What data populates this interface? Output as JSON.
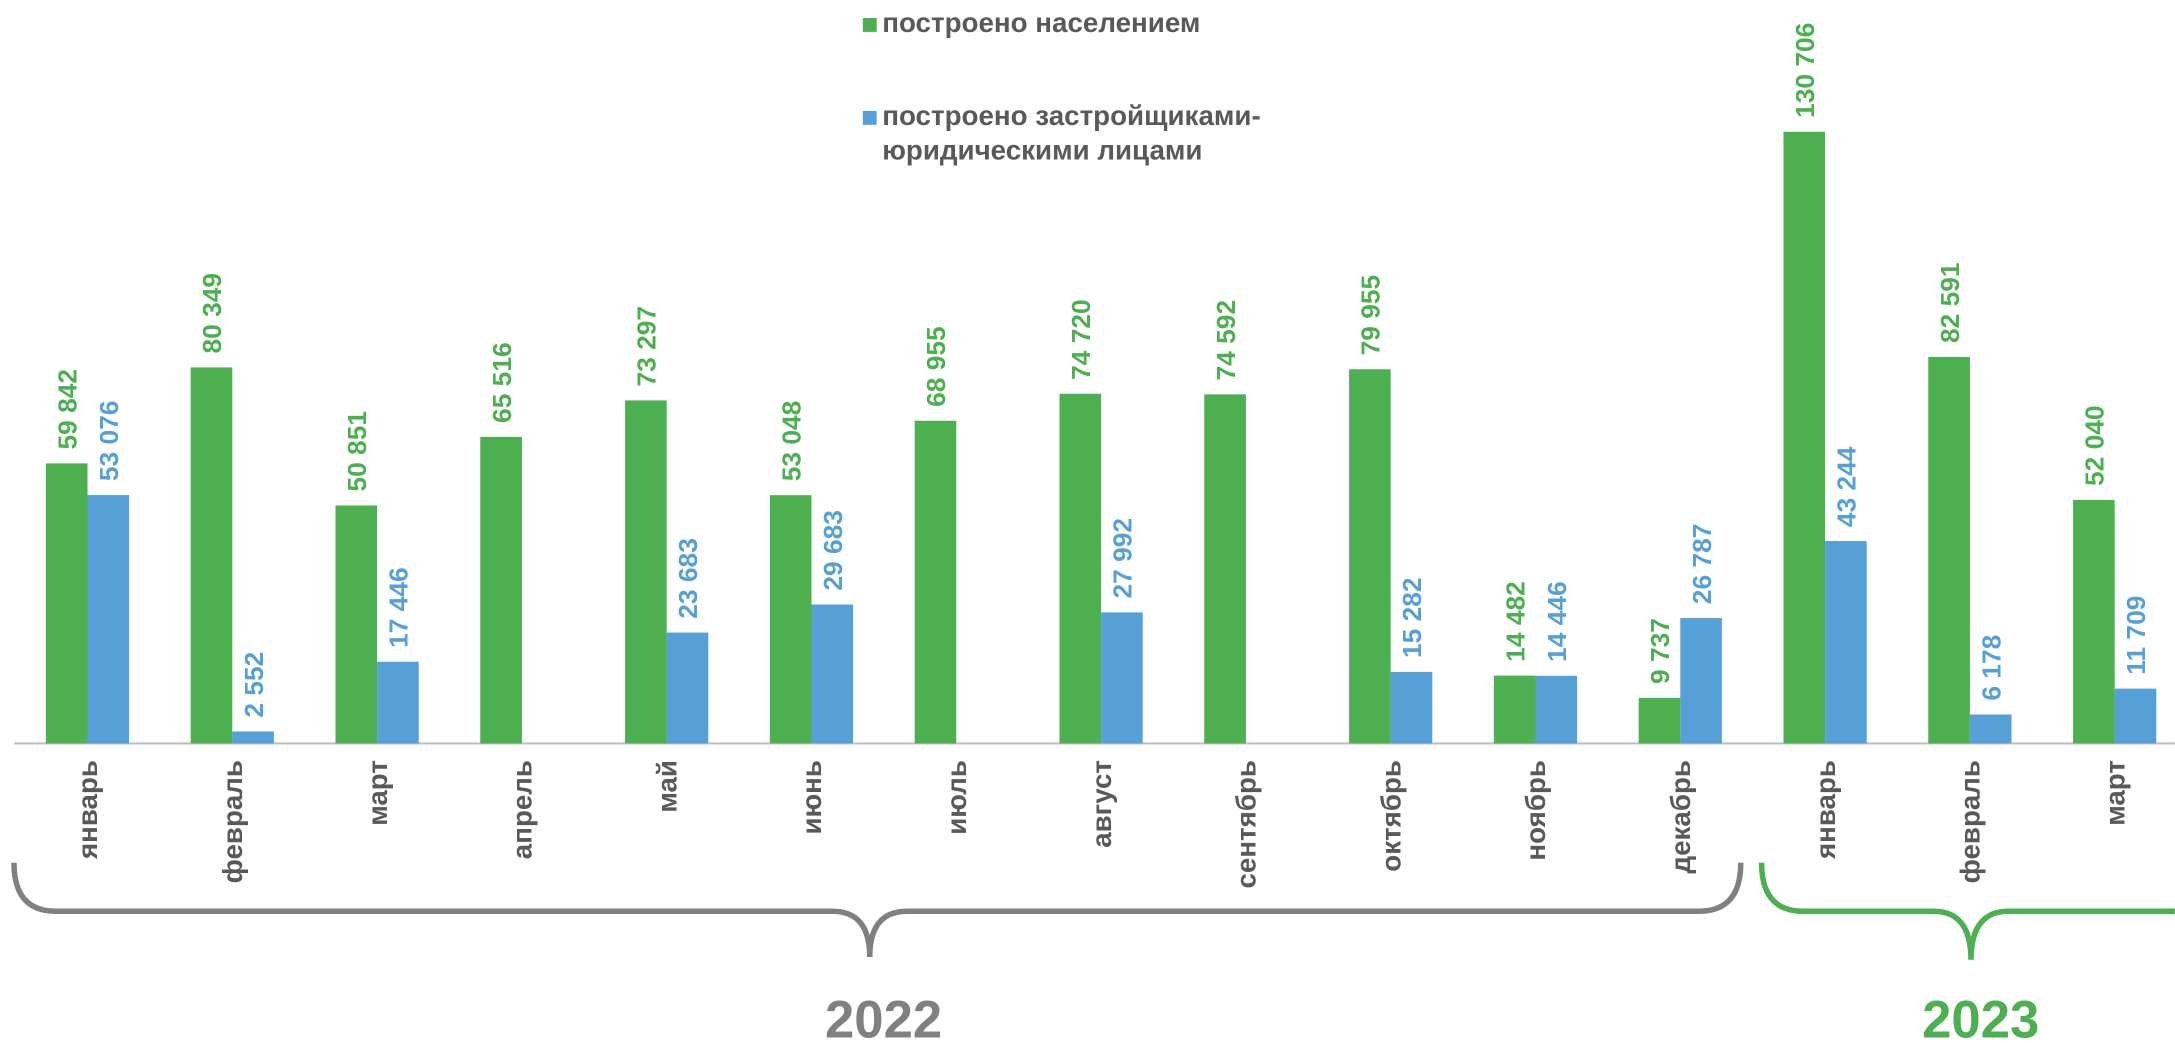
{
  "chart_data": {
    "type": "bar",
    "categories": [
      "январь",
      "февраль",
      "март",
      "апрель",
      "май",
      "июнь",
      "июль",
      "август",
      "сентябрь",
      "октябрь",
      "ноябрь",
      "декабрь",
      "январь",
      "февраль",
      "март"
    ],
    "series": [
      {
        "name": "построено населением",
        "color": "#4caf50",
        "values": [
          59842,
          80349,
          50851,
          65516,
          73297,
          53048,
          68955,
          74720,
          74592,
          79955,
          14482,
          9737,
          130706,
          82591,
          52040
        ],
        "value_labels": [
          "59 842",
          "80 349",
          "50 851",
          "65 516",
          "73 297",
          "53 048",
          "68 955",
          "74 720",
          "74 592",
          "79 955",
          "14 482",
          "9 737",
          "130 706",
          "82 591",
          "52 040"
        ]
      },
      {
        "name": "построено застройщиками-\nюридическими лицами",
        "color": "#56a0d8",
        "values": [
          53076,
          2552,
          17446,
          null,
          23683,
          29683,
          null,
          27992,
          null,
          15282,
          14446,
          26787,
          43244,
          6178,
          11709
        ],
        "value_labels": [
          "53 076",
          "2 552",
          "17 446",
          null,
          "23 683",
          "29 683",
          null,
          "27 992",
          null,
          "15 282",
          "14 446",
          "26 787",
          "43 244",
          "6 178",
          "11 709"
        ]
      }
    ],
    "annotations": [
      {
        "text": "2022",
        "color": "#808080"
      },
      {
        "text": "2023",
        "color": "#4caf50"
      }
    ]
  }
}
